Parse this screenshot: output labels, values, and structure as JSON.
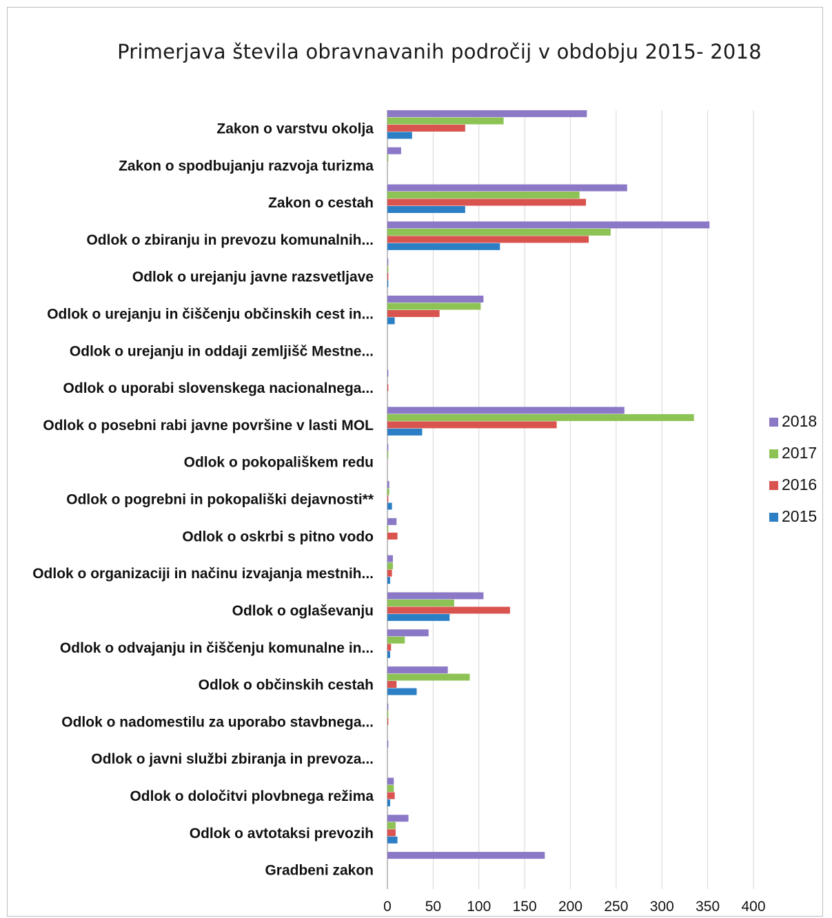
{
  "chart_data": {
    "type": "bar",
    "orientation": "horizontal",
    "title": "Primerjava števila obravnavanih področij v obdobju 2015- 2018",
    "xlabel": "",
    "ylabel": "",
    "xlim": [
      0,
      400
    ],
    "xticks": [
      "0",
      "50",
      "100",
      "150",
      "200",
      "250",
      "300",
      "350",
      "400"
    ],
    "grid": "vertical",
    "legend": "right",
    "categories": [
      "Zakon o varstvu okolja",
      "Zakon o spodbujanju razvoja turizma",
      "Zakon o cestah",
      "Odlok o zbiranju in prevozu komunalnih...",
      "Odlok o urejanju javne razsvetljave",
      "Odlok o urejanju in čiščenju občinskih cest in...",
      "Odlok o urejanju in oddaji zemljišč Mestne...",
      "Odlok o uporabi slovenskega nacionalnega...",
      "Odlok o posebni rabi javne površine v lasti MOL",
      "Odlok o pokopališkem redu",
      "Odlok o pogrebni in pokopališki dejavnosti**",
      "Odlok o oskrbi s pitno vodo",
      "Odlok o organizaciji in načinu izvajanja mestnih...",
      "Odlok o oglaševanju",
      "Odlok o odvajanju in čiščenju komunalne in...",
      "Odlok o občinskih cestah",
      "Odlok o nadomestilu za uporabo stavbnega...",
      "Odlok o javni službi zbiranja in prevoza...",
      "Odlok o določitvi plovbnega režima",
      "Odlok o avtotaksi prevozih",
      "Gradbeni zakon"
    ],
    "series": [
      {
        "name": "2018",
        "color": "#8b78c6",
        "values": [
          218,
          15,
          262,
          352,
          1,
          105,
          0,
          1,
          259,
          1,
          2,
          10,
          6,
          105,
          45,
          66,
          1,
          1,
          7,
          23,
          172
        ]
      },
      {
        "name": "2017",
        "color": "#8dc255",
        "values": [
          127,
          1,
          210,
          244,
          1,
          102,
          0,
          0,
          335,
          1,
          2,
          1,
          6,
          73,
          19,
          90,
          1,
          0,
          7,
          9,
          0
        ]
      },
      {
        "name": "2016",
        "color": "#d9534f",
        "values": [
          85,
          0,
          217,
          220,
          1,
          57,
          0,
          1,
          185,
          0,
          1,
          11,
          5,
          134,
          4,
          10,
          1,
          0,
          8,
          9,
          0
        ]
      },
      {
        "name": "2015",
        "color": "#2c7fc4",
        "values": [
          27,
          0,
          85,
          123,
          1,
          8,
          0,
          0,
          38,
          0,
          5,
          0,
          3,
          68,
          3,
          32,
          0,
          0,
          3,
          11,
          0
        ]
      }
    ]
  }
}
